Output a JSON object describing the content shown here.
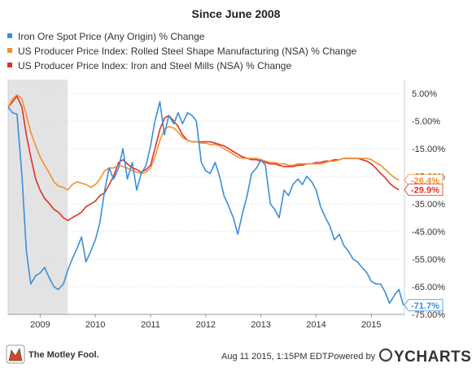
{
  "chart_data": {
    "type": "line",
    "title": "Since June 2008",
    "legend_position": "top-left",
    "grid": true,
    "xlim": [
      2008.42,
      2015.6
    ],
    "ylim": [
      -75,
      10
    ],
    "x_ticks": [
      {
        "value": 2009,
        "label": "2009"
      },
      {
        "value": 2010,
        "label": "2010"
      },
      {
        "value": 2011,
        "label": "2011"
      },
      {
        "value": 2012,
        "label": "2012"
      },
      {
        "value": 2013,
        "label": "2013"
      },
      {
        "value": 2014,
        "label": "2014"
      },
      {
        "value": 2015,
        "label": "2015"
      }
    ],
    "y_ticks": [
      {
        "value": 5,
        "label": "5.00%"
      },
      {
        "value": -5,
        "label": "-5.00%"
      },
      {
        "value": -15,
        "label": "-15.00%"
      },
      {
        "value": -25,
        "label": "-25.00%"
      },
      {
        "value": -35,
        "label": "-35.00%"
      },
      {
        "value": -45,
        "label": "-45.00%"
      },
      {
        "value": -55,
        "label": "-55.00%"
      },
      {
        "value": -65,
        "label": "-65.00%"
      },
      {
        "value": -75,
        "label": "-75.00%"
      }
    ],
    "recession_band": [
      2008.42,
      2009.5
    ],
    "series": [
      {
        "name": "Iron Ore Spot Price (Any Origin) % Change",
        "color": "#3a8fd9",
        "end_label": "-71.7%",
        "points": [
          [
            2008.42,
            0
          ],
          [
            2008.5,
            -2
          ],
          [
            2008.58,
            -2.5
          ],
          [
            2008.67,
            -25
          ],
          [
            2008.75,
            -52
          ],
          [
            2008.83,
            -64
          ],
          [
            2008.92,
            -61
          ],
          [
            2009.0,
            -60
          ],
          [
            2009.08,
            -58
          ],
          [
            2009.17,
            -62
          ],
          [
            2009.25,
            -65
          ],
          [
            2009.33,
            -66
          ],
          [
            2009.42,
            -64
          ],
          [
            2009.5,
            -59
          ],
          [
            2009.58,
            -55
          ],
          [
            2009.67,
            -51
          ],
          [
            2009.75,
            -47
          ],
          [
            2009.83,
            -56
          ],
          [
            2009.92,
            -52
          ],
          [
            2010.0,
            -48
          ],
          [
            2010.08,
            -42
          ],
          [
            2010.17,
            -30
          ],
          [
            2010.25,
            -22
          ],
          [
            2010.33,
            -26
          ],
          [
            2010.42,
            -22
          ],
          [
            2010.5,
            -15
          ],
          [
            2010.58,
            -26
          ],
          [
            2010.67,
            -20
          ],
          [
            2010.75,
            -30
          ],
          [
            2010.83,
            -24
          ],
          [
            2010.92,
            -21
          ],
          [
            2011.0,
            -14
          ],
          [
            2011.08,
            -5
          ],
          [
            2011.17,
            2
          ],
          [
            2011.25,
            -10
          ],
          [
            2011.33,
            -3
          ],
          [
            2011.42,
            -6
          ],
          [
            2011.5,
            -2
          ],
          [
            2011.58,
            -6
          ],
          [
            2011.67,
            -2
          ],
          [
            2011.75,
            -3
          ],
          [
            2011.83,
            -5
          ],
          [
            2011.92,
            -20
          ],
          [
            2012.0,
            -23
          ],
          [
            2012.08,
            -24
          ],
          [
            2012.17,
            -20
          ],
          [
            2012.25,
            -25
          ],
          [
            2012.33,
            -32
          ],
          [
            2012.42,
            -36
          ],
          [
            2012.5,
            -40
          ],
          [
            2012.58,
            -46
          ],
          [
            2012.67,
            -38
          ],
          [
            2012.75,
            -32
          ],
          [
            2012.83,
            -24
          ],
          [
            2012.92,
            -22
          ],
          [
            2013.0,
            -19
          ],
          [
            2013.08,
            -21
          ],
          [
            2013.17,
            -35
          ],
          [
            2013.25,
            -37
          ],
          [
            2013.33,
            -40
          ],
          [
            2013.42,
            -30
          ],
          [
            2013.5,
            -32
          ],
          [
            2013.58,
            -28
          ],
          [
            2013.67,
            -26
          ],
          [
            2013.75,
            -28
          ],
          [
            2013.83,
            -25
          ],
          [
            2013.92,
            -27
          ],
          [
            2014.0,
            -30
          ],
          [
            2014.08,
            -36
          ],
          [
            2014.17,
            -40
          ],
          [
            2014.25,
            -43
          ],
          [
            2014.33,
            -48
          ],
          [
            2014.42,
            -46
          ],
          [
            2014.5,
            -50
          ],
          [
            2014.58,
            -52
          ],
          [
            2014.67,
            -55
          ],
          [
            2014.75,
            -56
          ],
          [
            2014.83,
            -58
          ],
          [
            2014.92,
            -60
          ],
          [
            2015.0,
            -63
          ],
          [
            2015.08,
            -64
          ],
          [
            2015.17,
            -64
          ],
          [
            2015.25,
            -67
          ],
          [
            2015.33,
            -71
          ],
          [
            2015.42,
            -68
          ],
          [
            2015.5,
            -66
          ],
          [
            2015.58,
            -71.7
          ]
        ]
      },
      {
        "name": "US Producer Price Index: Rolled Steel Shape Manufacturing (NSA) % Change",
        "color": "#f0902f",
        "end_label": "-26.4%",
        "points": [
          [
            2008.42,
            0
          ],
          [
            2008.5,
            3
          ],
          [
            2008.58,
            4.5
          ],
          [
            2008.67,
            3
          ],
          [
            2008.75,
            -3
          ],
          [
            2008.83,
            -9
          ],
          [
            2008.92,
            -14
          ],
          [
            2009.0,
            -18
          ],
          [
            2009.08,
            -21
          ],
          [
            2009.17,
            -24
          ],
          [
            2009.25,
            -27
          ],
          [
            2009.33,
            -28.5
          ],
          [
            2009.42,
            -29
          ],
          [
            2009.5,
            -30
          ],
          [
            2009.58,
            -28
          ],
          [
            2009.67,
            -27
          ],
          [
            2009.75,
            -27.5
          ],
          [
            2009.83,
            -28
          ],
          [
            2009.92,
            -29
          ],
          [
            2010.0,
            -28
          ],
          [
            2010.08,
            -26
          ],
          [
            2010.17,
            -23
          ],
          [
            2010.25,
            -22
          ],
          [
            2010.33,
            -22
          ],
          [
            2010.42,
            -21
          ],
          [
            2010.5,
            -21.5
          ],
          [
            2010.58,
            -22
          ],
          [
            2010.67,
            -23
          ],
          [
            2010.75,
            -23.5
          ],
          [
            2010.83,
            -24
          ],
          [
            2010.92,
            -23.5
          ],
          [
            2011.0,
            -22
          ],
          [
            2011.08,
            -18
          ],
          [
            2011.17,
            -12
          ],
          [
            2011.25,
            -8
          ],
          [
            2011.33,
            -7
          ],
          [
            2011.42,
            -7.5
          ],
          [
            2011.5,
            -9
          ],
          [
            2011.58,
            -11
          ],
          [
            2011.67,
            -12
          ],
          [
            2011.75,
            -12.5
          ],
          [
            2011.83,
            -12.5
          ],
          [
            2011.92,
            -13
          ],
          [
            2012.0,
            -13
          ],
          [
            2012.08,
            -13.5
          ],
          [
            2012.17,
            -13.5
          ],
          [
            2012.25,
            -14
          ],
          [
            2012.33,
            -15
          ],
          [
            2012.42,
            -16
          ],
          [
            2012.5,
            -17
          ],
          [
            2012.58,
            -18
          ],
          [
            2012.67,
            -18.5
          ],
          [
            2012.75,
            -18.5
          ],
          [
            2012.83,
            -18.5
          ],
          [
            2012.92,
            -18.5
          ],
          [
            2013.0,
            -19
          ],
          [
            2013.08,
            -19.5
          ],
          [
            2013.17,
            -20
          ],
          [
            2013.25,
            -20
          ],
          [
            2013.33,
            -20.5
          ],
          [
            2013.42,
            -20.5
          ],
          [
            2013.5,
            -21
          ],
          [
            2013.58,
            -21
          ],
          [
            2013.67,
            -20.5
          ],
          [
            2013.75,
            -20.5
          ],
          [
            2013.83,
            -20.5
          ],
          [
            2013.92,
            -20.5
          ],
          [
            2014.0,
            -20.5
          ],
          [
            2014.08,
            -20.5
          ],
          [
            2014.17,
            -20
          ],
          [
            2014.25,
            -19.5
          ],
          [
            2014.33,
            -19.5
          ],
          [
            2014.42,
            -19
          ],
          [
            2014.5,
            -18.5
          ],
          [
            2014.58,
            -18.5
          ],
          [
            2014.67,
            -18.5
          ],
          [
            2014.75,
            -18.5
          ],
          [
            2014.83,
            -18.5
          ],
          [
            2014.92,
            -18.5
          ],
          [
            2015.0,
            -19
          ],
          [
            2015.08,
            -20
          ],
          [
            2015.17,
            -21
          ],
          [
            2015.25,
            -22.5
          ],
          [
            2015.33,
            -24
          ],
          [
            2015.42,
            -25.5
          ],
          [
            2015.5,
            -26.4
          ]
        ]
      },
      {
        "name": "US Producer Price Index: Iron and Steel Mills (NSA) % Change",
        "color": "#e0302a",
        "end_label": "-29.9%",
        "points": [
          [
            2008.42,
            0
          ],
          [
            2008.5,
            2
          ],
          [
            2008.58,
            4
          ],
          [
            2008.67,
            0
          ],
          [
            2008.75,
            -10
          ],
          [
            2008.83,
            -18
          ],
          [
            2008.92,
            -26
          ],
          [
            2009.0,
            -30
          ],
          [
            2009.08,
            -33
          ],
          [
            2009.17,
            -35
          ],
          [
            2009.25,
            -37
          ],
          [
            2009.33,
            -38
          ],
          [
            2009.42,
            -40
          ],
          [
            2009.5,
            -41
          ],
          [
            2009.58,
            -40
          ],
          [
            2009.67,
            -39
          ],
          [
            2009.75,
            -38
          ],
          [
            2009.83,
            -36
          ],
          [
            2009.92,
            -35
          ],
          [
            2010.0,
            -34
          ],
          [
            2010.08,
            -32
          ],
          [
            2010.17,
            -31
          ],
          [
            2010.25,
            -28
          ],
          [
            2010.33,
            -25
          ],
          [
            2010.42,
            -20
          ],
          [
            2010.5,
            -19
          ],
          [
            2010.58,
            -20.5
          ],
          [
            2010.67,
            -22
          ],
          [
            2010.75,
            -22.5
          ],
          [
            2010.83,
            -23.5
          ],
          [
            2010.92,
            -22.5
          ],
          [
            2011.0,
            -21
          ],
          [
            2011.08,
            -15
          ],
          [
            2011.17,
            -8
          ],
          [
            2011.25,
            -4
          ],
          [
            2011.33,
            -3
          ],
          [
            2011.42,
            -5
          ],
          [
            2011.5,
            -7
          ],
          [
            2011.58,
            -10
          ],
          [
            2011.67,
            -12
          ],
          [
            2011.75,
            -12.5
          ],
          [
            2011.83,
            -12.5
          ],
          [
            2011.92,
            -12.5
          ],
          [
            2012.0,
            -12.5
          ],
          [
            2012.08,
            -12.5
          ],
          [
            2012.17,
            -13
          ],
          [
            2012.25,
            -13.5
          ],
          [
            2012.33,
            -14
          ],
          [
            2012.42,
            -15
          ],
          [
            2012.5,
            -16
          ],
          [
            2012.58,
            -17
          ],
          [
            2012.67,
            -18
          ],
          [
            2012.75,
            -18.5
          ],
          [
            2012.83,
            -19
          ],
          [
            2012.92,
            -19
          ],
          [
            2013.0,
            -19.5
          ],
          [
            2013.08,
            -20
          ],
          [
            2013.17,
            -20.5
          ],
          [
            2013.25,
            -20.5
          ],
          [
            2013.33,
            -21
          ],
          [
            2013.42,
            -21.5
          ],
          [
            2013.5,
            -21.5
          ],
          [
            2013.58,
            -21.5
          ],
          [
            2013.67,
            -21
          ],
          [
            2013.75,
            -21
          ],
          [
            2013.83,
            -20.5
          ],
          [
            2013.92,
            -20.5
          ],
          [
            2014.0,
            -20
          ],
          [
            2014.08,
            -20
          ],
          [
            2014.17,
            -19.5
          ],
          [
            2014.25,
            -19.5
          ],
          [
            2014.33,
            -19
          ],
          [
            2014.42,
            -19
          ],
          [
            2014.5,
            -18.5
          ],
          [
            2014.58,
            -18.5
          ],
          [
            2014.67,
            -18.5
          ],
          [
            2014.75,
            -18.5
          ],
          [
            2014.83,
            -19
          ],
          [
            2014.92,
            -19.5
          ],
          [
            2015.0,
            -20.5
          ],
          [
            2015.08,
            -22
          ],
          [
            2015.17,
            -24
          ],
          [
            2015.25,
            -25.5
          ],
          [
            2015.33,
            -27.5
          ],
          [
            2015.42,
            -29
          ],
          [
            2015.5,
            -29.9
          ]
        ]
      }
    ]
  },
  "footer": {
    "brand": "The Motley Fool.",
    "timestamp": "Aug 11 2015, 1:15PM EDT.",
    "powered_by": "Powered by",
    "ycharts": "YCHARTS"
  }
}
